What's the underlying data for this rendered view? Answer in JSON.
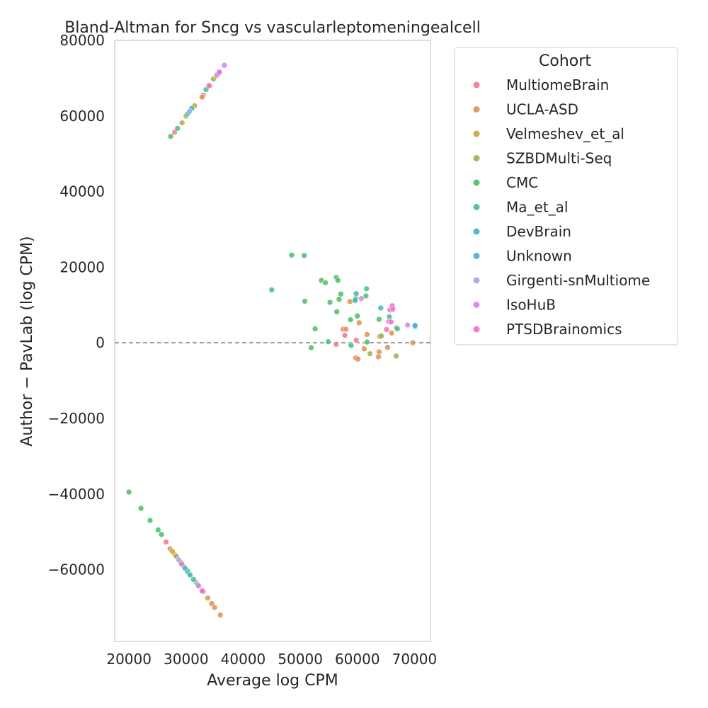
{
  "chart_data": {
    "type": "scatter",
    "title": "Bland-Altman for Sncg vs vascularleptomeningealcell",
    "xlabel": "Average log CPM",
    "ylabel": "Author − PavLab (log CPM)",
    "xlim": [
      17500,
      72800
    ],
    "ylim": [
      -79000,
      80000
    ],
    "xticks": [
      20000,
      30000,
      40000,
      50000,
      60000,
      70000
    ],
    "xtick_labels": [
      "20000",
      "30000",
      "40000",
      "50000",
      "60000",
      "70000"
    ],
    "yticks": [
      80000,
      60000,
      40000,
      20000,
      0,
      -20000,
      -40000,
      -60000
    ],
    "ytick_labels": [
      "80000",
      "60000",
      "40000",
      "20000",
      "0",
      "−20000",
      "−40000",
      "−60000"
    ],
    "reference_line": {
      "y": 0,
      "style": "dashed"
    },
    "grid": false,
    "legend": {
      "title": "Cohort",
      "placement": "outside-right",
      "entries": [
        {
          "name": "MultiomeBrain",
          "color": "#f0788c"
        },
        {
          "name": "UCLA-ASD",
          "color": "#e0914f"
        },
        {
          "name": "Velmeshev_et_al",
          "color": "#c4a43e"
        },
        {
          "name": "SZBDMulti-Seq",
          "color": "#a3ad4a"
        },
        {
          "name": "CMC",
          "color": "#4bbd6b"
        },
        {
          "name": "Ma_et_al",
          "color": "#45bba0"
        },
        {
          "name": "DevBrain",
          "color": "#45b3bb"
        },
        {
          "name": "Unknown",
          "color": "#46addb"
        },
        {
          "name": "Girgenti-snMultiome",
          "color": "#a2a6f0"
        },
        {
          "name": "IsoHuB",
          "color": "#d684f0"
        },
        {
          "name": "PTSDBrainomics",
          "color": "#f070c7"
        }
      ]
    },
    "series": [
      {
        "name": "MultiomeBrain",
        "color": "#f0788c",
        "points": [
          [
            28000,
            55700
          ],
          [
            33000,
            65500
          ],
          [
            26500,
            -52700
          ],
          [
            33000,
            -65800
          ],
          [
            57500,
            3600
          ],
          [
            57800,
            2000
          ],
          [
            56300,
            -400
          ],
          [
            59800,
            700
          ]
        ]
      },
      {
        "name": "UCLA-ASD",
        "color": "#e0914f",
        "points": [
          [
            32800,
            65000
          ],
          [
            27200,
            -54500
          ],
          [
            28000,
            -56000
          ],
          [
            33800,
            -67500
          ],
          [
            34500,
            -69000
          ],
          [
            35000,
            -70000
          ],
          [
            36000,
            -72000
          ],
          [
            58700,
            10900
          ],
          [
            60300,
            5300
          ],
          [
            59700,
            -4000
          ],
          [
            60100,
            -4300
          ],
          [
            61200,
            -1600
          ],
          [
            61700,
            2200
          ],
          [
            63800,
            -2400
          ],
          [
            63700,
            -3700
          ],
          [
            65300,
            -1200
          ],
          [
            66000,
            2600
          ],
          [
            69700,
            0
          ],
          [
            58000,
            3600
          ]
        ]
      },
      {
        "name": "Velmeshev_et_al",
        "color": "#c4a43e",
        "points": [
          [
            29300,
            58200
          ],
          [
            31500,
            62700
          ],
          [
            34200,
            68000
          ],
          [
            27600,
            -55200
          ],
          [
            29500,
            -58900
          ],
          [
            31700,
            -63300
          ],
          [
            66800,
            4000
          ],
          [
            63900,
            1700
          ]
        ]
      },
      {
        "name": "SZBDMulti-Seq",
        "color": "#a3ad4a",
        "points": [
          [
            30000,
            60000
          ],
          [
            34800,
            69800
          ],
          [
            35300,
            70600
          ],
          [
            28300,
            -56500
          ],
          [
            30500,
            -61000
          ],
          [
            62200,
            -2900
          ],
          [
            66800,
            -3500
          ],
          [
            64200,
            1800
          ]
        ]
      },
      {
        "name": "CMC",
        "color": "#4bbd6b",
        "points": [
          [
            27300,
            54600
          ],
          [
            28500,
            56700
          ],
          [
            20000,
            -39500
          ],
          [
            22100,
            -43800
          ],
          [
            23700,
            -47000
          ],
          [
            25100,
            -49500
          ],
          [
            25700,
            -50700
          ],
          [
            29000,
            -58000
          ],
          [
            48500,
            23200
          ],
          [
            50700,
            23100
          ],
          [
            45000,
            14000
          ],
          [
            50800,
            11000
          ],
          [
            53700,
            16500
          ],
          [
            54400,
            15900
          ],
          [
            56300,
            17300
          ],
          [
            56600,
            16500
          ],
          [
            52600,
            3700
          ],
          [
            51900,
            -1300
          ],
          [
            54900,
            300
          ],
          [
            55200,
            10700
          ],
          [
            56400,
            8200
          ],
          [
            56800,
            11500
          ],
          [
            57100,
            12900
          ],
          [
            58800,
            6100
          ],
          [
            58900,
            -700
          ],
          [
            59700,
            11700
          ],
          [
            60000,
            7100
          ],
          [
            61700,
            200
          ],
          [
            61500,
            12400
          ],
          [
            63800,
            6200
          ]
        ]
      },
      {
        "name": "Ma_et_al",
        "color": "#45bba0",
        "points": [
          [
            30300,
            60600
          ],
          [
            33500,
            67000
          ],
          [
            30200,
            -60300
          ],
          [
            32000,
            -64000
          ],
          [
            59800,
            13000
          ],
          [
            61600,
            14300
          ],
          [
            65600,
            6900
          ],
          [
            67000,
            3700
          ]
        ]
      },
      {
        "name": "DevBrain",
        "color": "#45b3bb",
        "points": [
          [
            31000,
            62000
          ],
          [
            30700,
            -61400
          ],
          [
            31300,
            -62600
          ],
          [
            59600,
            11200
          ],
          [
            64100,
            9200
          ],
          [
            70100,
            4300
          ]
        ]
      },
      {
        "name": "Unknown",
        "color": "#46addb",
        "points": [
          [
            29800,
            -59600
          ],
          [
            70100,
            4600
          ]
        ]
      },
      {
        "name": "Girgenti-snMultiome",
        "color": "#a2a6f0",
        "points": [
          [
            30600,
            61200
          ],
          [
            28700,
            -57400
          ],
          [
            35900,
            71500
          ]
        ]
      },
      {
        "name": "IsoHuB",
        "color": "#d684f0",
        "points": [
          [
            36700,
            73400
          ],
          [
            35500,
            71000
          ],
          [
            32200,
            -64300
          ],
          [
            60700,
            11700
          ],
          [
            65500,
            5600
          ],
          [
            68800,
            4700
          ]
        ]
      },
      {
        "name": "PTSDBrainomics",
        "color": "#f070c7",
        "points": [
          [
            34000,
            68000
          ],
          [
            35800,
            71600
          ],
          [
            29200,
            -58500
          ],
          [
            32800,
            -65600
          ],
          [
            65700,
            8700
          ],
          [
            66100,
            9800
          ],
          [
            65900,
            5500
          ],
          [
            65100,
            3500
          ],
          [
            66200,
            8900
          ]
        ]
      }
    ]
  }
}
